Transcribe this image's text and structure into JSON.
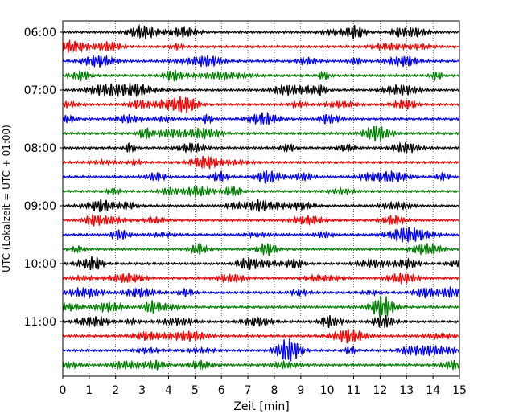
{
  "chart_data": {
    "type": "line",
    "title": "",
    "xlabel": "Zeit  [min]",
    "ylabel": "UTC (Lokalzeit = UTC + 01:00)",
    "xlim": [
      0,
      15
    ],
    "x_ticks": [
      0,
      1,
      2,
      3,
      4,
      5,
      6,
      7,
      8,
      9,
      10,
      11,
      12,
      13,
      14,
      15
    ],
    "x_tick_labels": [
      "0",
      "1",
      "2",
      "3",
      "4",
      "5",
      "6",
      "7",
      "8",
      "9",
      "10",
      "11",
      "12",
      "13",
      "14",
      "15"
    ],
    "y_tick_labels": [
      "06:00",
      "07:00",
      "08:00",
      "09:00",
      "10:00",
      "11:00"
    ],
    "grid": true,
    "trace_colors": [
      "#000000",
      "#ff0000",
      "#0000ff",
      "#008000"
    ],
    "traces": [
      {
        "start": "06:00",
        "color": "#000000"
      },
      {
        "start": "06:15",
        "color": "#ff0000"
      },
      {
        "start": "06:30",
        "color": "#0000ff"
      },
      {
        "start": "06:45",
        "color": "#008000"
      },
      {
        "start": "07:00",
        "color": "#000000"
      },
      {
        "start": "07:15",
        "color": "#ff0000"
      },
      {
        "start": "07:30",
        "color": "#0000ff"
      },
      {
        "start": "07:45",
        "color": "#008000"
      },
      {
        "start": "08:00",
        "color": "#000000"
      },
      {
        "start": "08:15",
        "color": "#ff0000"
      },
      {
        "start": "08:30",
        "color": "#0000ff"
      },
      {
        "start": "08:45",
        "color": "#008000"
      },
      {
        "start": "09:00",
        "color": "#000000"
      },
      {
        "start": "09:15",
        "color": "#ff0000"
      },
      {
        "start": "09:30",
        "color": "#0000ff"
      },
      {
        "start": "09:45",
        "color": "#008000"
      },
      {
        "start": "10:00",
        "color": "#000000"
      },
      {
        "start": "10:15",
        "color": "#ff0000"
      },
      {
        "start": "10:30",
        "color": "#0000ff"
      },
      {
        "start": "10:45",
        "color": "#008000"
      },
      {
        "start": "11:00",
        "color": "#000000"
      },
      {
        "start": "11:15",
        "color": "#ff0000"
      },
      {
        "start": "11:30",
        "color": "#0000ff"
      },
      {
        "start": "11:45",
        "color": "#008000"
      }
    ]
  }
}
